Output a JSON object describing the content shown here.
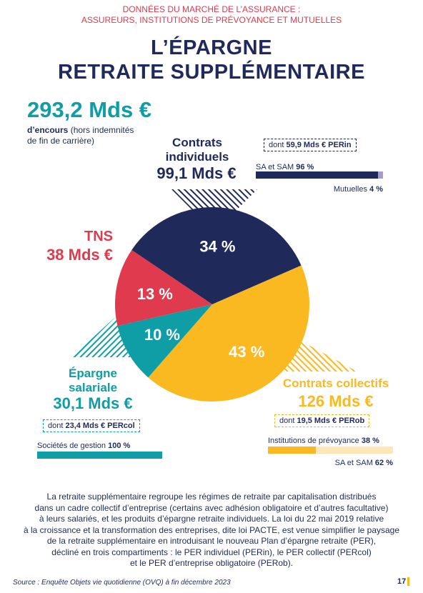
{
  "header": {
    "line1": "DONNÉES DU MARCHÉ DE L’ASSURANCE :",
    "line2": "ASSUREURS, INSTITUTIONS DE PRÉVOYANCE ET MUTUELLES",
    "title1": "L’ÉPARGNE",
    "title2": "RETRAITE SUPPLÉMENTAIRE"
  },
  "total": {
    "value": "293,2 Mds €",
    "label_bold": "d’encours",
    "label_rest1": " (hors indemnités",
    "label_rest2": "de fin de carrière)"
  },
  "segments": {
    "individuels": {
      "name1": "Contrats",
      "name2": "individuels",
      "amount": "99,1 Mds €",
      "dont_prefix": "dont ",
      "dont_value": "59,9 Mds € PERin",
      "bar1_label": "SA et SAM ",
      "bar1_pct": "96 %",
      "bar2_label": "Mutuelles ",
      "bar2_pct": "4 %"
    },
    "tns": {
      "name": "TNS",
      "amount": "38 Mds €"
    },
    "salariale": {
      "name1": "Épargne",
      "name2": "salariale",
      "amount": "30,1 Mds €",
      "dont_prefix": "dont ",
      "dont_value": "23,4 Mds € PERcol",
      "bar1_label": "Sociétés de gestion ",
      "bar1_pct": "100 %"
    },
    "collectifs": {
      "name": "Contrats collectifs",
      "amount": "126 Mds €",
      "dont_prefix": "dont ",
      "dont_value": "19,5 Mds € PERob",
      "bar1_label": "Institutions de prévoyance ",
      "bar1_pct": "38 %",
      "bar2_label": "SA et SAM ",
      "bar2_pct": "62 %"
    }
  },
  "chart_data": {
    "type": "pie",
    "slices": [
      {
        "label": "Contrats individuels",
        "value": 34,
        "display": "34 %",
        "color": "#1f2a5a",
        "text_color": "#ffffff"
      },
      {
        "label": "Contrats collectifs",
        "value": 43,
        "display": "43 %",
        "color": "#fbb921",
        "text_color": "#ffffff"
      },
      {
        "label": "Épargne salariale",
        "value": 10,
        "display": "10 %",
        "color": "#0f9ea5",
        "text_color": "#ffffff"
      },
      {
        "label": "TNS",
        "value": 13,
        "display": "13 %",
        "color": "#e03a4e",
        "text_color": "#ffffff"
      }
    ],
    "sub_bars": [
      {
        "group": "Contrats individuels",
        "parts": [
          {
            "label": "SA et SAM",
            "value": 96,
            "color": "#1f2a5a"
          },
          {
            "label": "Mutuelles",
            "value": 4,
            "color": "#a79cc6"
          }
        ]
      },
      {
        "group": "Épargne salariale",
        "parts": [
          {
            "label": "Sociétés de gestion",
            "value": 100,
            "color": "#0f9ea5"
          }
        ]
      },
      {
        "group": "Contrats collectifs",
        "parts": [
          {
            "label": "Institutions de prévoyance",
            "value": 38,
            "color": "#fbb921"
          },
          {
            "label": "SA et SAM",
            "value": 62,
            "color": "#fde7b5"
          }
        ]
      }
    ]
  },
  "paragraph": [
    "La retraite supplémentaire regroupe les régimes de retraite par capitalisation distribués",
    "dans un cadre collectif d’entreprise (certains avec adhésion obligatoire et d’autres facultative)",
    "à leurs salariés, et les produits d’épargne retraite individuels. La loi du 22 mai 2019 relative",
    "à la croissance et la transformation des entreprises, dite loi PACTE, est venue simplifier le paysage",
    "de la retraite supplémentaire en introduisant le nouveau Plan d’épargne retraite (PER),",
    "décliné en trois compartiments : le PER individuel (PERin), le PER collectif (PERcol)",
    "et le PER d’entreprise obligatoire (PERob)."
  ],
  "footer": {
    "source": "Source : Enquête Objets vie quotidienne (OVQ) à fin décembre 2023",
    "page": "17"
  }
}
